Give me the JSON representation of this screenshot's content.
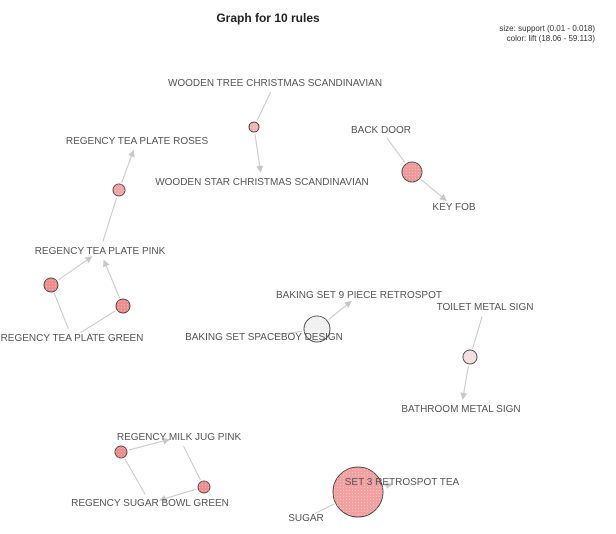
{
  "title": "Graph for 10 rules",
  "legend": {
    "size_line": "size: support (0.01 - 0.018)",
    "color_line": "color: lift (18.06 - 59.113)"
  },
  "items": [
    {
      "id": "wooden_tree",
      "label": "WOODEN TREE CHRISTMAS SCANDINAVIAN"
    },
    {
      "id": "wooden_star",
      "label": "WOODEN STAR CHRISTMAS SCANDINAVIAN"
    },
    {
      "id": "back_door",
      "label": "BACK DOOR"
    },
    {
      "id": "key_fob",
      "label": "KEY FOB"
    },
    {
      "id": "regency_roses",
      "label": "REGENCY TEA PLATE ROSES"
    },
    {
      "id": "regency_pink",
      "label": "REGENCY TEA PLATE PINK"
    },
    {
      "id": "regency_green",
      "label": "REGENCY TEA PLATE GREEN"
    },
    {
      "id": "baking_9",
      "label": "BAKING SET 9 PIECE RETROSPOT"
    },
    {
      "id": "baking_spaceboy",
      "label": "BAKING SET SPACEBOY DESIGN"
    },
    {
      "id": "toilet_sign",
      "label": "TOILET METAL SIGN"
    },
    {
      "id": "bathroom_sign",
      "label": "BATHROOM METAL SIGN"
    },
    {
      "id": "milk_jug",
      "label": "REGENCY MILK JUG PINK"
    },
    {
      "id": "sugar_bowl",
      "label": "REGENCY SUGAR BOWL GREEN"
    },
    {
      "id": "set3_tea",
      "label": "SET 3 RETROSPOT TEA"
    },
    {
      "id": "sugar",
      "label": "SUGAR"
    }
  ],
  "rules": [
    {
      "id": "r_tree_star",
      "lhs": "wooden_tree",
      "rhs": "wooden_star",
      "color": "#f3b3b3"
    },
    {
      "id": "r_door_fob",
      "lhs": "back_door",
      "rhs": "key_fob",
      "color": "#ef9999"
    },
    {
      "id": "r_pink_roses",
      "lhs": "regency_pink",
      "rhs": "regency_roses",
      "color": "#f4a3a3"
    },
    {
      "id": "r_green_pink_a",
      "lhs": "regency_green",
      "rhs": "regency_pink",
      "color": "#f08c8c"
    },
    {
      "id": "r_green_pink_b",
      "lhs": "regency_green",
      "rhs": "regency_pink",
      "color": "#f08c8c"
    },
    {
      "id": "r_spaceboy_9",
      "lhs": "baking_spaceboy",
      "rhs": "baking_9",
      "color": "#f1f1f1"
    },
    {
      "id": "r_toilet_bath",
      "lhs": "toilet_sign",
      "rhs": "bathroom_sign",
      "color": "#f4dede"
    },
    {
      "id": "r_sugarbowl_milk",
      "lhs": "sugar_bowl",
      "rhs": "milk_jug",
      "color": "#f08c8c"
    },
    {
      "id": "r_milk_sugarbowl",
      "lhs": "milk_jug",
      "rhs": "sugar_bowl",
      "color": "#ef8f8f"
    },
    {
      "id": "r_sugar_set3",
      "lhs": "sugar",
      "rhs": "set3_tea",
      "color": "#f2a0a0"
    }
  ]
}
